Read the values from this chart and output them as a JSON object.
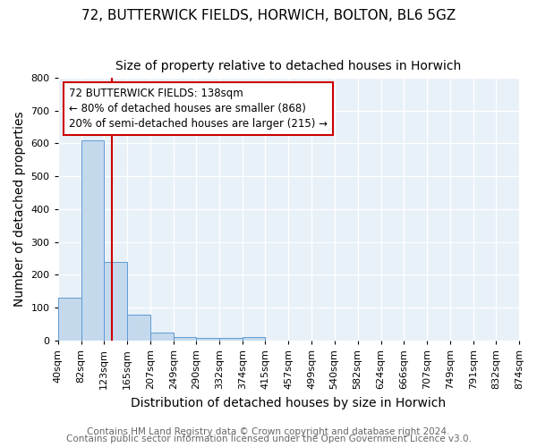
{
  "title_line1": "72, BUTTERWICK FIELDS, HORWICH, BOLTON, BL6 5GZ",
  "title_line2": "Size of property relative to detached houses in Horwich",
  "xlabel": "Distribution of detached houses by size in Horwich",
  "ylabel": "Number of detached properties",
  "bin_edges": [
    40,
    82,
    123,
    165,
    207,
    249,
    290,
    332,
    374,
    415,
    457,
    499,
    540,
    582,
    624,
    666,
    707,
    749,
    791,
    832,
    874
  ],
  "bar_heights": [
    130,
    608,
    238,
    78,
    24,
    12,
    8,
    8,
    10,
    0,
    0,
    0,
    0,
    0,
    0,
    0,
    0,
    0,
    0,
    0
  ],
  "bar_color": "#c5d9ed",
  "bar_edge_color": "#5b9bd5",
  "property_size": 138,
  "vline_color": "#cc0000",
  "annotation_text": "72 BUTTERWICK FIELDS: 138sqm\n← 80% of detached houses are smaller (868)\n20% of semi-detached houses are larger (215) →",
  "annotation_box_color": "#ffffff",
  "annotation_box_edge_color": "#cc0000",
  "footer_line1": "Contains HM Land Registry data © Crown copyright and database right 2024.",
  "footer_line2": "Contains public sector information licensed under the Open Government Licence v3.0.",
  "ylim": [
    0,
    800
  ],
  "yticks": [
    0,
    100,
    200,
    300,
    400,
    500,
    600,
    700,
    800
  ],
  "background_color": "#e8f0f8",
  "grid_color": "#ffffff",
  "title_fontsize": 11,
  "subtitle_fontsize": 10,
  "axis_label_fontsize": 10,
  "tick_fontsize": 8,
  "footer_fontsize": 7.5,
  "annotation_fontsize": 8.5
}
